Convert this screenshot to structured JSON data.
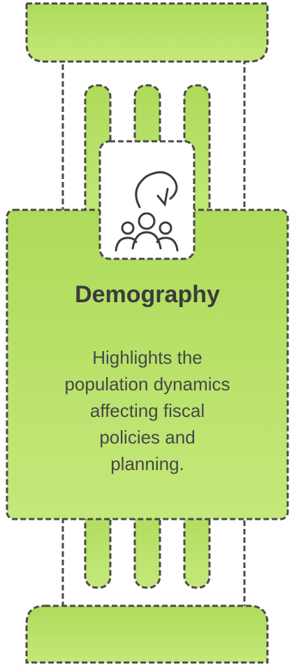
{
  "title": "Demography",
  "description_lines": [
    "Highlights the",
    "population dynamics",
    "affecting fiscal",
    "policies and",
    "planning."
  ]
}
